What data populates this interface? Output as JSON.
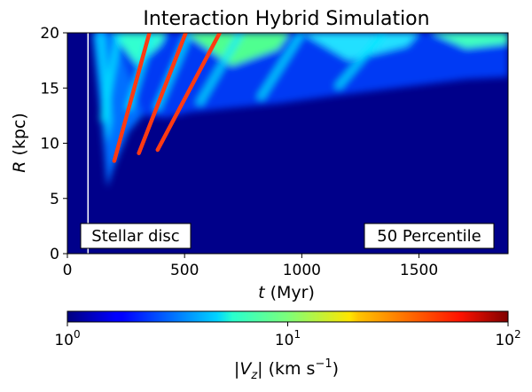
{
  "chart_data": {
    "type": "heatmap",
    "title": "Interaction Hybrid Simulation",
    "xlabel_italic": "t",
    "xlabel_unit": " (Myr)",
    "ylabel_italic": "R",
    "ylabel_unit": " (kpc)",
    "xlim": [
      0,
      1880
    ],
    "ylim": [
      0,
      20
    ],
    "xticks": [
      0,
      500,
      1000,
      1500
    ],
    "yticks": [
      0,
      5,
      10,
      15,
      20
    ],
    "colorbar": {
      "scale": "log",
      "range": [
        1,
        100
      ],
      "colormap": "jet",
      "tick_base": "10",
      "tick_exponents": [
        "0",
        "1",
        "2"
      ],
      "label_prefix": "|",
      "label_var": "V",
      "label_sub": "z",
      "label_mid": "| (km s",
      "label_sup": "−1",
      "label_suffix": ")"
    },
    "annotations": {
      "left_box": "Stellar disc",
      "right_box": "50 Percentile"
    },
    "vertical_marker_t": 88,
    "fit_lines": [
      {
        "t": [
          200,
          350
        ],
        "R": [
          8.4,
          20
        ]
      },
      {
        "t": [
          305,
          505
        ],
        "R": [
          9.1,
          20
        ]
      },
      {
        "t": [
          385,
          650
        ],
        "R": [
          9.4,
          20
        ]
      }
    ],
    "colors": {
      "background": "#00008a",
      "fit_line": "#ff3a12",
      "marker": "#ffffff"
    }
  }
}
